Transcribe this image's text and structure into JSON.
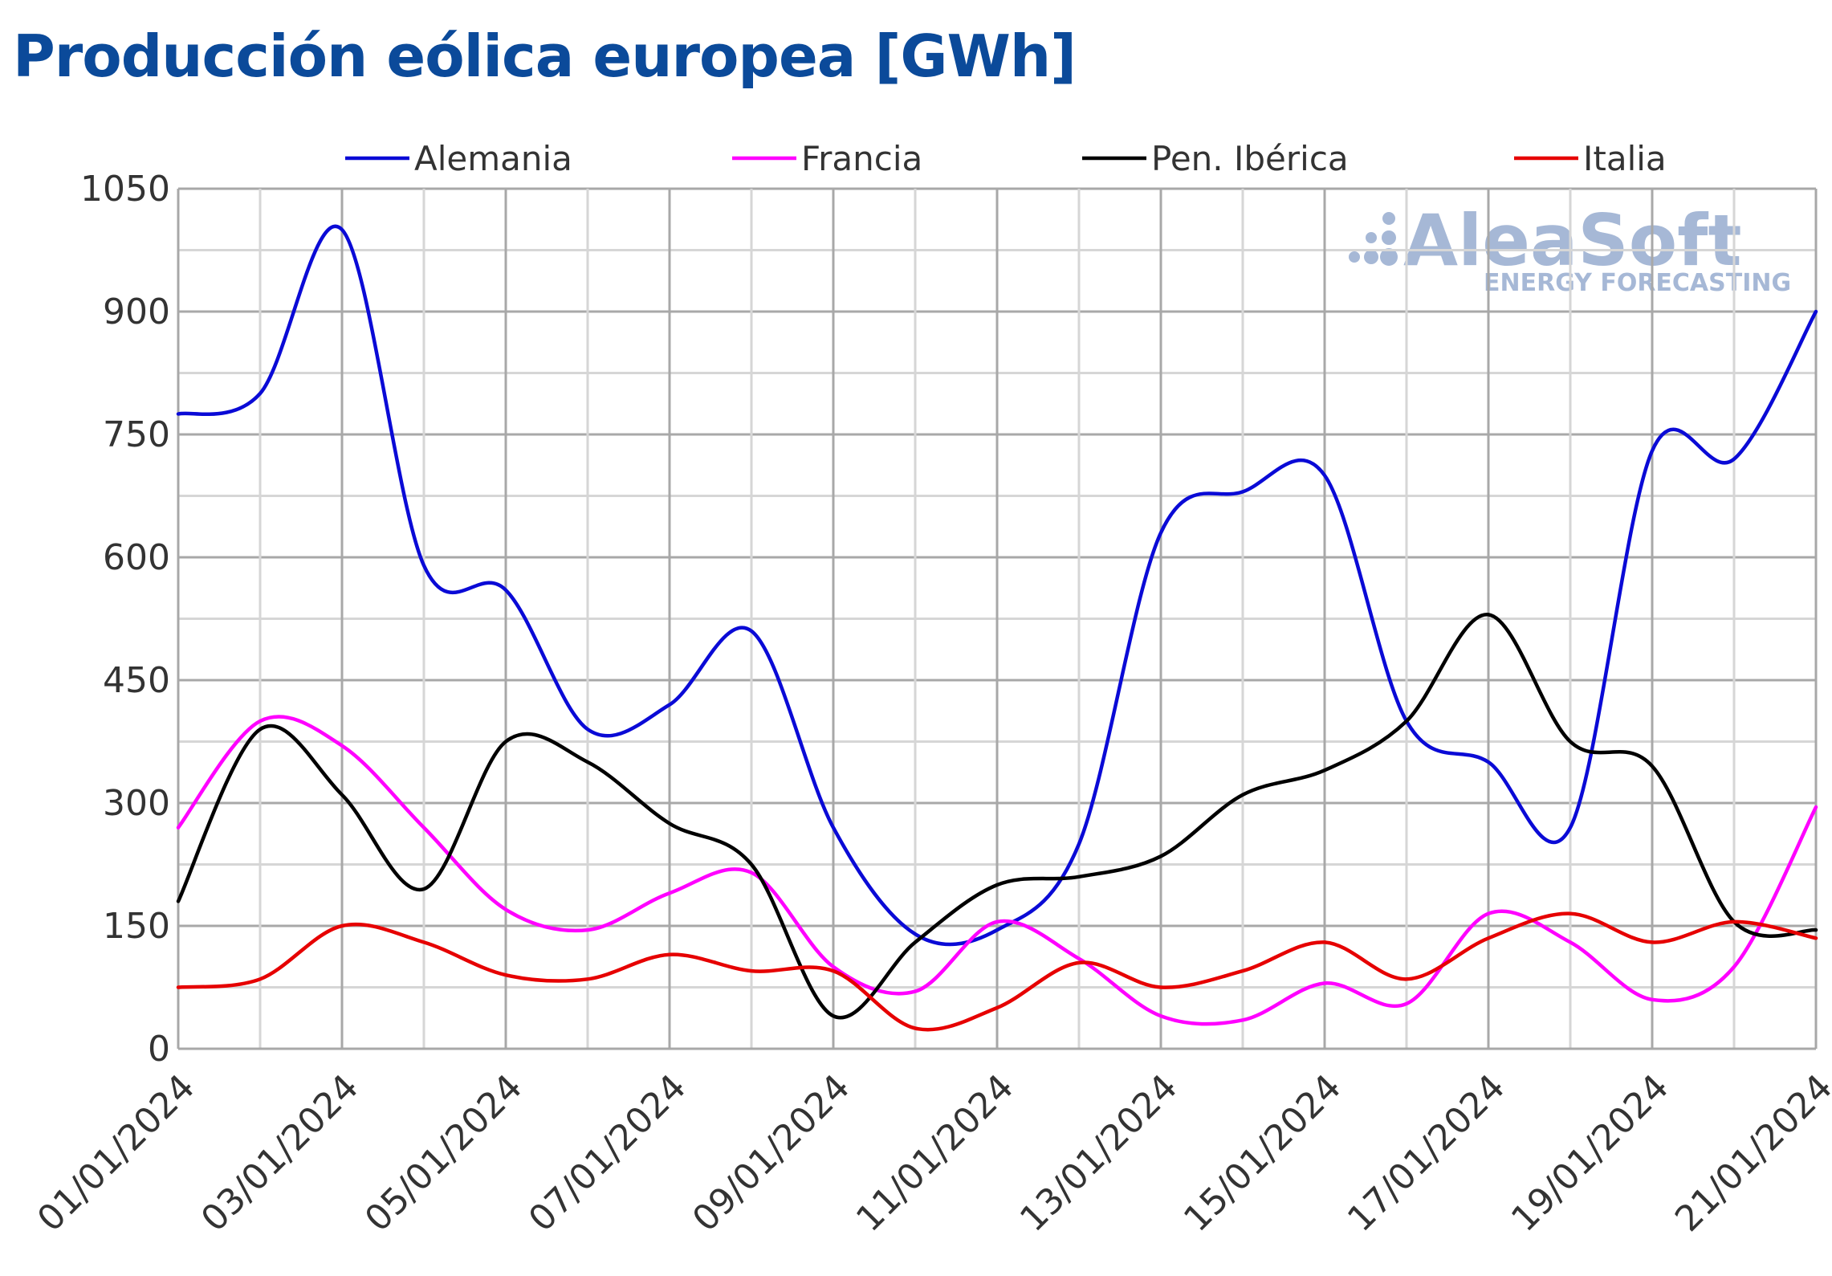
{
  "chart_data": {
    "type": "line",
    "title": "Producción eólica europea [GWh]",
    "xlabel": "",
    "ylabel": "",
    "ylim": [
      0,
      1050
    ],
    "yticks": [
      0,
      150,
      300,
      450,
      600,
      750,
      900,
      1050
    ],
    "x": [
      "01/01/2024",
      "02/01/2024",
      "03/01/2024",
      "04/01/2024",
      "05/01/2024",
      "06/01/2024",
      "07/01/2024",
      "08/01/2024",
      "09/01/2024",
      "10/01/2024",
      "11/01/2024",
      "12/01/2024",
      "13/01/2024",
      "14/01/2024",
      "15/01/2024",
      "16/01/2024",
      "17/01/2024",
      "18/01/2024",
      "19/01/2024",
      "20/01/2024",
      "21/01/2024"
    ],
    "xtick_labels": [
      "01/01/2024",
      "03/01/2024",
      "05/01/2024",
      "07/01/2024",
      "09/01/2024",
      "11/01/2024",
      "13/01/2024",
      "15/01/2024",
      "17/01/2024",
      "19/01/2024",
      "21/01/2024"
    ],
    "grid": true,
    "legend": "top",
    "series": [
      {
        "name": "Alemania",
        "color": "#0a0ad6",
        "values": [
          775,
          800,
          1000,
          590,
          560,
          390,
          420,
          510,
          270,
          140,
          145,
          250,
          630,
          680,
          700,
          400,
          350,
          270,
          730,
          720,
          900
        ]
      },
      {
        "name": "Francia",
        "color": "#ff00ff",
        "values": [
          270,
          400,
          370,
          270,
          170,
          145,
          190,
          215,
          100,
          70,
          155,
          110,
          40,
          35,
          80,
          55,
          165,
          130,
          60,
          100,
          295
        ]
      },
      {
        "name": "Pen. Ibérica",
        "color": "#000000",
        "values": [
          180,
          390,
          310,
          195,
          375,
          350,
          275,
          225,
          40,
          130,
          200,
          210,
          235,
          310,
          340,
          400,
          530,
          375,
          345,
          155,
          145
        ]
      },
      {
        "name": "Italia",
        "color": "#e60000",
        "values": [
          75,
          85,
          150,
          130,
          90,
          85,
          115,
          95,
          95,
          25,
          50,
          105,
          75,
          95,
          130,
          85,
          135,
          165,
          130,
          155,
          135
        ]
      }
    ]
  },
  "watermark": {
    "brand": "AleaSoft",
    "tagline": "ENERGY FORECASTING"
  }
}
